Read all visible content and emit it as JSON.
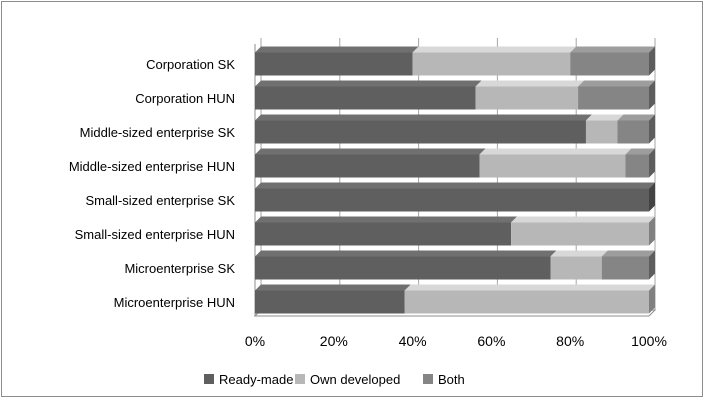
{
  "chart_data": {
    "type": "bar",
    "orientation": "horizontal",
    "stacked": "100%",
    "style": "3d",
    "categories": [
      "Corporation SK",
      "Corporation HUN",
      "Middle-sized enterprise SK",
      "Middle-sized enterprise HUN",
      "Small-sized enterprise SK",
      "Small-sized enterprise HUN",
      "Microenterprise SK",
      "Microenterprise HUN"
    ],
    "series": [
      {
        "name": "Ready-made",
        "color": "#5f5f5f",
        "values": [
          40,
          56,
          84,
          57,
          100,
          65,
          75,
          38
        ]
      },
      {
        "name": "Own developed",
        "color": "#b7b7b7",
        "values": [
          40,
          26,
          8,
          37,
          0,
          35,
          13,
          62
        ]
      },
      {
        "name": "Both",
        "color": "#858585",
        "values": [
          20,
          18,
          8,
          6,
          0,
          0,
          12,
          0
        ]
      }
    ],
    "xlim": [
      0,
      100
    ],
    "xticks": [
      "0%",
      "20%",
      "40%",
      "60%",
      "80%",
      "100%"
    ],
    "grid": true,
    "legend": "bottom",
    "title": "",
    "xlabel": "",
    "ylabel": ""
  }
}
